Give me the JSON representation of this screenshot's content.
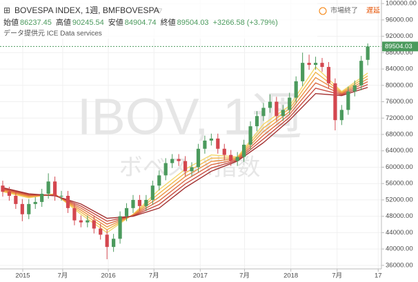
{
  "header": {
    "title": "BOVESPA INDEX, 1週, BMFBOVESPA",
    "open_label": "始値",
    "high_label": "高値",
    "low_label": "安値",
    "close_label": "終値",
    "change": "+3266.58 (+3.79%)",
    "source": "データ提供元 ICE Data services",
    "status": "市場終了",
    "delay": "遅延"
  },
  "chart_data": {
    "type": "candlestick",
    "watermark": "IBOV, 1週",
    "watermark_sub": "ボベスパ指数",
    "up_color": "#4b9a5d",
    "down_color": "#d4474f",
    "grid": true,
    "open": [
      55500,
      54000,
      53000,
      51000,
      48500,
      51000,
      51500,
      53500,
      56500,
      53000,
      53000,
      50000,
      47000,
      46500,
      47000,
      45000,
      43500,
      40500,
      42500,
      48000,
      50000,
      52000,
      50500,
      52000,
      55500,
      58000,
      61000,
      62000,
      61500,
      59000,
      60000,
      64500,
      66500,
      67000,
      64500,
      63000,
      61500,
      62500,
      65500,
      70000,
      72500,
      74500,
      76000,
      72500,
      74000,
      77000,
      81000,
      85500,
      85000,
      85500,
      84500,
      80500,
      71500,
      74000,
      78500,
      80000,
      86237.45
    ],
    "high": [
      56700,
      55200,
      54200,
      52200,
      52200,
      52700,
      54700,
      58500,
      57700,
      54200,
      54200,
      51200,
      48200,
      48200,
      48200,
      46200,
      44700,
      43700,
      49200,
      51200,
      53200,
      53200,
      53200,
      56700,
      59200,
      62200,
      63200,
      63200,
      62700,
      61200,
      65700,
      67700,
      68200,
      68200,
      65700,
      64200,
      63700,
      66700,
      71200,
      73700,
      75700,
      77800,
      77200,
      75200,
      78200,
      82200,
      88000,
      87500,
      87000,
      86700,
      85700,
      81700,
      75200,
      79700,
      81200,
      87200,
      90245.54
    ],
    "low": [
      52800,
      51800,
      49800,
      46800,
      47300,
      49800,
      50300,
      52300,
      51800,
      51800,
      48800,
      45800,
      45300,
      45300,
      43800,
      42300,
      37500,
      39300,
      41300,
      46800,
      48800,
      49300,
      49300,
      50800,
      54300,
      56800,
      59800,
      60300,
      57800,
      57800,
      58800,
      63300,
      65300,
      63300,
      61800,
      60300,
      60300,
      61300,
      64300,
      68800,
      71300,
      73300,
      71300,
      71300,
      72800,
      75800,
      79800,
      83800,
      83800,
      83300,
      79300,
      69000,
      70300,
      72800,
      77300,
      78800,
      84904.74
    ],
    "close": [
      54000,
      53000,
      51000,
      48500,
      51000,
      51500,
      53500,
      56500,
      53000,
      53000,
      50000,
      47000,
      46500,
      47000,
      45000,
      43500,
      40500,
      42500,
      48000,
      50000,
      52000,
      50500,
      52000,
      55500,
      58000,
      61000,
      62000,
      61500,
      59000,
      60000,
      64500,
      66500,
      67000,
      64500,
      63000,
      61500,
      62500,
      65500,
      70000,
      72500,
      74500,
      76000,
      72500,
      74000,
      77000,
      81000,
      85500,
      85000,
      85500,
      84500,
      80500,
      71500,
      74000,
      78500,
      80000,
      86000,
      89504.03
    ],
    "ribbon": {
      "x": [
        0,
        4,
        8,
        12,
        16,
        20,
        24,
        28,
        32,
        36,
        40,
        44,
        48,
        52,
        56
      ],
      "series": [
        {
          "color": "#f4d76a",
          "values": [
            54000,
            52500,
            53500,
            48500,
            44000,
            48500,
            54500,
            59500,
            63000,
            62500,
            70500,
            75000,
            84500,
            78500,
            83000
          ]
        },
        {
          "color": "#f2b449",
          "values": [
            54200,
            52700,
            53400,
            49000,
            44700,
            48400,
            53600,
            58600,
            62200,
            62300,
            69600,
            74300,
            83200,
            78300,
            82300
          ]
        },
        {
          "color": "#ea9043",
          "values": [
            54400,
            52900,
            53300,
            49500,
            45400,
            48300,
            52700,
            57700,
            61400,
            62100,
            68700,
            73600,
            81900,
            78100,
            81600
          ]
        },
        {
          "color": "#dc6c45",
          "values": [
            54600,
            53100,
            53200,
            50000,
            46100,
            48200,
            51800,
            56800,
            60600,
            61900,
            67800,
            72900,
            80600,
            77900,
            80900
          ]
        },
        {
          "color": "#c84c40",
          "values": [
            54800,
            53300,
            53100,
            50500,
            46800,
            48100,
            50900,
            55900,
            59800,
            61700,
            66900,
            72200,
            79300,
            77700,
            80200
          ]
        },
        {
          "color": "#a33131",
          "values": [
            55000,
            53500,
            53000,
            51000,
            47500,
            48000,
            50000,
            55000,
            59000,
            61500,
            66000,
            71500,
            78000,
            77500,
            79500
          ]
        }
      ]
    },
    "xlim": [
      -0.42,
      58.1
    ],
    "xticks": [
      {
        "value": 3.07,
        "label": "2015"
      },
      {
        "value": 9.2,
        "label": "7月"
      },
      {
        "value": 16.2,
        "label": "2016"
      },
      {
        "value": 23.2,
        "label": "7月"
      },
      {
        "value": 30.3,
        "label": "2017"
      },
      {
        "value": 37.1,
        "label": "7月"
      },
      {
        "value": 44.2,
        "label": "2018"
      },
      {
        "value": 51.3,
        "label": "7月"
      },
      {
        "value": 57.6,
        "label": "17"
      }
    ],
    "ylim": [
      35135,
      100865
    ],
    "yticks": [
      {
        "value": 36000,
        "label": "36000.00"
      },
      {
        "value": 40000,
        "label": "40000.00"
      },
      {
        "value": 44000,
        "label": "44000.00"
      },
      {
        "value": 48000,
        "label": "48000.00"
      },
      {
        "value": 52000,
        "label": "52000.00"
      },
      {
        "value": 56000,
        "label": "56000.00"
      },
      {
        "value": 60000,
        "label": "60000.00"
      },
      {
        "value": 64000,
        "label": "64000.00"
      },
      {
        "value": 68000,
        "label": "68000.00"
      },
      {
        "value": 72000,
        "label": "72000.00"
      },
      {
        "value": 76000,
        "label": "76000.00"
      },
      {
        "value": 80000,
        "label": "80000.00"
      },
      {
        "value": 84000,
        "label": "84000.00"
      },
      {
        "value": 88000,
        "label": "88000.00"
      },
      {
        "value": 92000,
        "label": "92000.00"
      },
      {
        "value": 96000,
        "label": "96000.00"
      },
      {
        "value": 100000,
        "label": "100000.00"
      }
    ]
  }
}
